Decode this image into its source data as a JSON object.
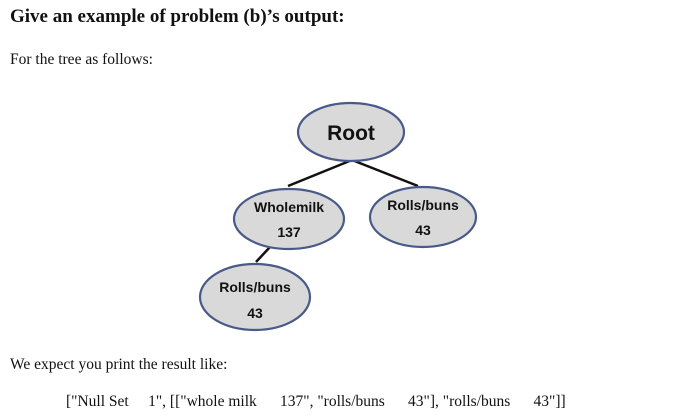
{
  "document": {
    "heading": "Give an example of problem (b)’s output:",
    "intro": "For the tree as follows:",
    "expect": "We expect you print the result like:",
    "result": "[\"Null Set     1\", [[\"whole milk      137\", \"rolls/buns      43\"], \"rolls/buns      43\"]]"
  },
  "tree": {
    "node_fill": "#d9d9d9",
    "node_stroke": "#4a5a88",
    "root": {
      "label": "Root"
    },
    "wholemilk": {
      "label": "Wholemilk",
      "count": "137"
    },
    "rolls_right": {
      "label": "Rolls/buns",
      "count": "43"
    },
    "rolls_child": {
      "label": "Rolls/buns",
      "count": "43"
    }
  }
}
